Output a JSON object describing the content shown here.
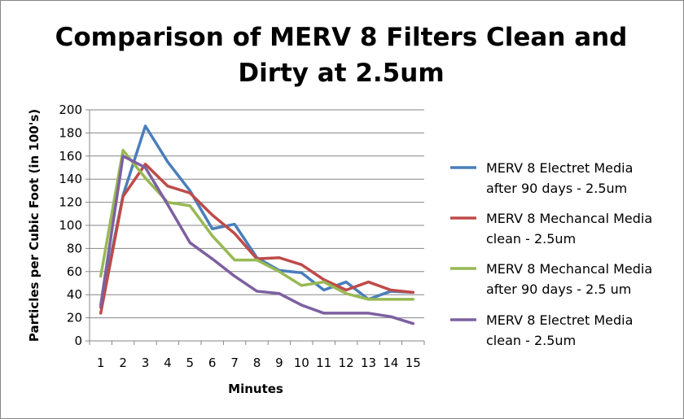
{
  "chart_data": {
    "type": "line",
    "title_lines": [
      "Comparison of MERV 8 Filters Clean and",
      "Dirty at 2.5um"
    ],
    "xlabel": "Minutes",
    "ylabel": "Particles per Cubic Foot (in 100's)",
    "x": [
      "1",
      "2",
      "3",
      "4",
      "5",
      "6",
      "7",
      "8",
      "9",
      "10",
      "11",
      "12",
      "13",
      "14",
      "15"
    ],
    "ylim": [
      0,
      200
    ],
    "yticks": [
      "0",
      "20",
      "40",
      "60",
      "80",
      "100",
      "120",
      "140",
      "160",
      "180",
      "200"
    ],
    "grid": "horizontal",
    "legend_position": "right",
    "series": [
      {
        "name": "MERV 8 Electret Media after 90 days - 2.5um",
        "legend_lines": [
          "MERV 8 Electret Media",
          "after 90 days - 2.5um"
        ],
        "color": "#4a7ebb",
        "values": [
          29,
          126,
          186,
          155,
          130,
          97,
          101,
          72,
          61,
          59,
          44,
          51,
          36,
          43,
          42
        ]
      },
      {
        "name": "MERV 8 Mechancal Media clean - 2.5um",
        "legend_lines": [
          "MERV 8 Mechancal Media",
          "clean - 2.5um"
        ],
        "color": "#be4b48",
        "values": [
          24,
          125,
          153,
          134,
          128,
          109,
          93,
          71,
          72,
          66,
          53,
          44,
          51,
          44,
          42
        ]
      },
      {
        "name": "MERV 8 Mechancal Media after 90 days - 2.5 um",
        "legend_lines": [
          "MERV 8 Mechancal Media",
          "after 90 days - 2.5 um"
        ],
        "color": "#98b954",
        "values": [
          56,
          165,
          141,
          120,
          117,
          91,
          70,
          70,
          60,
          48,
          51,
          41,
          36,
          36,
          36
        ]
      },
      {
        "name": "MERV 8 Electret Media clean - 2.5um",
        "legend_lines": [
          "MERV 8 Electret Media",
          "clean - 2.5um"
        ],
        "color": "#7d60a0",
        "values": [
          31,
          160,
          150,
          118,
          85,
          71,
          56,
          43,
          41,
          31,
          24,
          24,
          24,
          21,
          15
        ]
      }
    ]
  }
}
